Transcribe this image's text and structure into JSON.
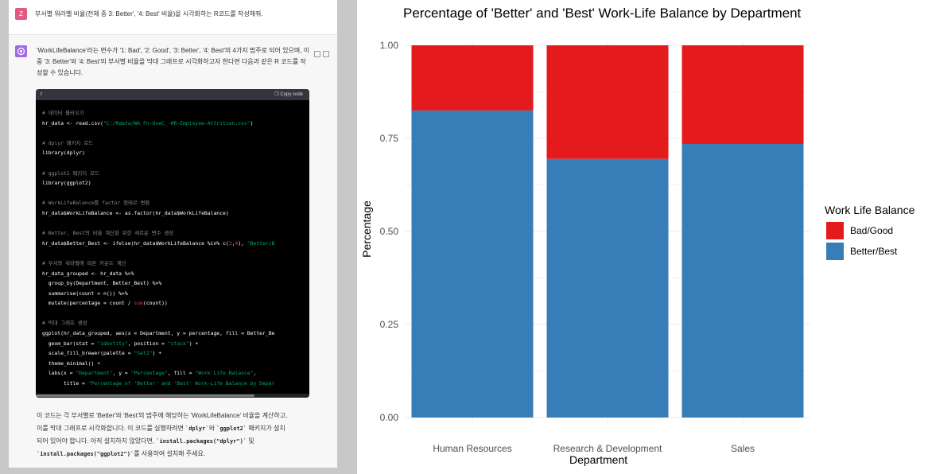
{
  "chat": {
    "user_avatar": "Z",
    "user_message": "부서별 워라벨 비율(전체 중 3: Better', '4: Best' 비율)을 시각화하는 R코드를 작성해줘.",
    "assistant_intro": "'WorkLifeBalance'라는 변수가 '1: Bad', '2: Good', '3: Better', '4: Best'의 4가지 범주로 되어 있으며, 이 중 '3: Better'와 '4: Best'의 부서별 비율을 막대 그래프로 시각화하고자 한다면 다음과 같은 R 코드를 작성할 수 있습니다.",
    "code_language": "r",
    "copy_label": "Copy code",
    "code_lines": [
      {
        "t": "comment",
        "text": "# 데이터 불러오기"
      },
      {
        "t": "mixed",
        "parts": [
          [
            "plain",
            "hr_data <- read.csv("
          ],
          [
            "str",
            "\"C:/Rdata/WA_Fn-UseC_-HR-Employee-Attrition.csv\""
          ],
          [
            "plain",
            ")"
          ]
        ]
      },
      {
        "t": "blank",
        "text": ""
      },
      {
        "t": "comment",
        "text": "# dplyr 패키지 로드"
      },
      {
        "t": "plain",
        "text": "library(dplyr)"
      },
      {
        "t": "blank",
        "text": ""
      },
      {
        "t": "comment",
        "text": "# ggplot2 패키지 로드"
      },
      {
        "t": "plain",
        "text": "library(ggplot2)"
      },
      {
        "t": "blank",
        "text": ""
      },
      {
        "t": "comment",
        "text": "# WorkLifeBalance를 factor 형태로 변환"
      },
      {
        "t": "plain",
        "text": "hr_data$WorkLifeBalance <- as.factor(hr_data$WorkLifeBalance)"
      },
      {
        "t": "blank",
        "text": ""
      },
      {
        "t": "comment",
        "text": "# Better, Best의 비율 계산을 위한 새로운 변수 생성"
      },
      {
        "t": "mixed",
        "parts": [
          [
            "plain",
            "hr_data$Better_Best <- ifelse(hr_data$WorkLifeBalance %in% c("
          ],
          [
            "num",
            "3"
          ],
          [
            "plain",
            ","
          ],
          [
            "num",
            "4"
          ],
          [
            "plain",
            "), "
          ],
          [
            "str",
            "\"Better/B"
          ]
        ]
      },
      {
        "t": "blank",
        "text": ""
      },
      {
        "t": "comment",
        "text": "# 부서와 워라벨에 따른 카운트 계산"
      },
      {
        "t": "plain",
        "text": "hr_data_grouped <- hr_data %>%"
      },
      {
        "t": "plain",
        "text": "  group_by(Department, Better_Best) %>%"
      },
      {
        "t": "plain",
        "text": "  summarise(count = n()) %>%"
      },
      {
        "t": "mixed",
        "parts": [
          [
            "plain",
            "  mutate(percentage = count / "
          ],
          [
            "fn",
            "sum"
          ],
          [
            "plain",
            "(count))"
          ]
        ]
      },
      {
        "t": "blank",
        "text": ""
      },
      {
        "t": "comment",
        "text": "# 막대 그래프 생성"
      },
      {
        "t": "plain",
        "text": "ggplot(hr_data_grouped, aes(x = Department, y = percentage, fill = Better_Be"
      },
      {
        "t": "mixed",
        "parts": [
          [
            "plain",
            "  geom_bar(stat = "
          ],
          [
            "str",
            "\"identity\""
          ],
          [
            "plain",
            ", position = "
          ],
          [
            "str",
            "\"stack\""
          ],
          [
            "plain",
            ") +"
          ]
        ]
      },
      {
        "t": "mixed",
        "parts": [
          [
            "plain",
            "  scale_fill_brewer(palette = "
          ],
          [
            "str",
            "\"Set1\""
          ],
          [
            "plain",
            ") +"
          ]
        ]
      },
      {
        "t": "plain",
        "text": "  theme_minimal() +"
      },
      {
        "t": "mixed",
        "parts": [
          [
            "plain",
            "  labs(x = "
          ],
          [
            "str",
            "\"Department\""
          ],
          [
            "plain",
            ", y = "
          ],
          [
            "str",
            "\"Percentage\""
          ],
          [
            "plain",
            ", fill = "
          ],
          [
            "str",
            "\"Work Life Balance\""
          ],
          [
            "plain",
            ","
          ]
        ]
      },
      {
        "t": "mixed",
        "parts": [
          [
            "plain",
            "       title = "
          ],
          [
            "str",
            "\"Percentage of 'Better' and 'Best' Work-Life Balance by Depar"
          ]
        ]
      }
    ],
    "outro_line1": "이 코드는 각 부서별로 'Better'와 'Best'의 범주에 해당하는 'WorkLifeBalance' 비율을 계산하고,",
    "outro_line2_a": "이를 막대 그래프로 시각화합니다. 이 코드를 실행하려면 ",
    "outro_code1": "`dplyr`",
    "outro_line2_b": "와 ",
    "outro_code2": "`ggplot2`",
    "outro_line2_c": " 패키지가 설치",
    "outro_line3_a": "되어 있어야 합니다. 아직 설치하지 않았다면, ",
    "outro_code3": "`install.packages(\"dplyr\")`",
    "outro_line3_b": " 및",
    "outro_code4": "`install.packages(\"ggplot2\")`",
    "outro_line4_b": "를 사용하여 설치해 주세요."
  },
  "chart_data": {
    "type": "bar",
    "stacked": true,
    "title": "Percentage of 'Better' and 'Best' Work-Life Balance by Department",
    "xlabel": "Department",
    "ylabel": "Percentage",
    "ylim": [
      0,
      1
    ],
    "yticks": [
      "0.00",
      "0.25",
      "0.50",
      "0.75",
      "1.00"
    ],
    "categories": [
      "Human Resources",
      "Research & Development",
      "Sales"
    ],
    "series": [
      {
        "name": "Better/Best",
        "values": [
          0.825,
          0.695,
          0.735
        ],
        "color": "#377EB8"
      },
      {
        "name": "Bad/Good",
        "values": [
          0.175,
          0.305,
          0.265
        ],
        "color": "#E41A1C"
      }
    ],
    "legend": {
      "title": "Work Life Balance",
      "position": "right",
      "entries": [
        "Bad/Good",
        "Better/Best"
      ]
    },
    "grid": true
  }
}
